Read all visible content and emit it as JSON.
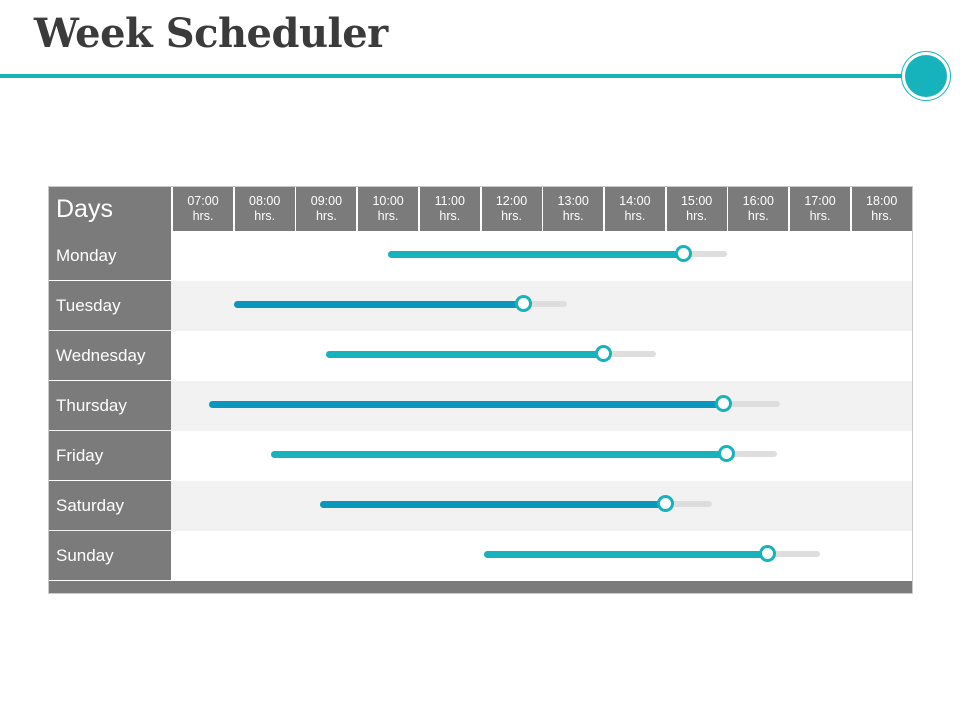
{
  "title": "Week Scheduler",
  "colors": {
    "accent": "#17b3bd",
    "accent_dark": "#0a97bd",
    "header_gray": "#7b7b7b",
    "track": "#dedede"
  },
  "table": {
    "days_header": "Days",
    "hours": [
      {
        "time": "07:00",
        "unit": "hrs."
      },
      {
        "time": "08:00",
        "unit": "hrs."
      },
      {
        "time": "09:00",
        "unit": "hrs."
      },
      {
        "time": "10:00",
        "unit": "hrs."
      },
      {
        "time": "11:00",
        "unit": "hrs."
      },
      {
        "time": "12:00",
        "unit": "hrs."
      },
      {
        "time": "13:00",
        "unit": "hrs."
      },
      {
        "time": "14:00",
        "unit": "hrs."
      },
      {
        "time": "15:00",
        "unit": "hrs."
      },
      {
        "time": "16:00",
        "unit": "hrs."
      },
      {
        "time": "17:00",
        "unit": "hrs."
      },
      {
        "time": "18:00",
        "unit": "hrs."
      }
    ],
    "days": [
      {
        "name": "Monday",
        "start": 10.0,
        "end": 14.8,
        "track_end": 15.5,
        "color": "#17b3bd"
      },
      {
        "name": "Tuesday",
        "start": 7.5,
        "end": 12.2,
        "track_end": 12.9,
        "color": "#0a97bd"
      },
      {
        "name": "Wednesday",
        "start": 9.0,
        "end": 13.5,
        "track_end": 14.35,
        "color": "#17b3bd"
      },
      {
        "name": "Thursday",
        "start": 7.1,
        "end": 15.45,
        "track_end": 16.35,
        "color": "#0a97bd"
      },
      {
        "name": "Friday",
        "start": 8.1,
        "end": 15.5,
        "track_end": 16.3,
        "color": "#17b3bd"
      },
      {
        "name": "Saturday",
        "start": 8.9,
        "end": 14.5,
        "track_end": 15.25,
        "color": "#0a97bd"
      },
      {
        "name": "Sunday",
        "start": 11.55,
        "end": 16.15,
        "track_end": 17.0,
        "color": "#17b3bd"
      }
    ]
  }
}
